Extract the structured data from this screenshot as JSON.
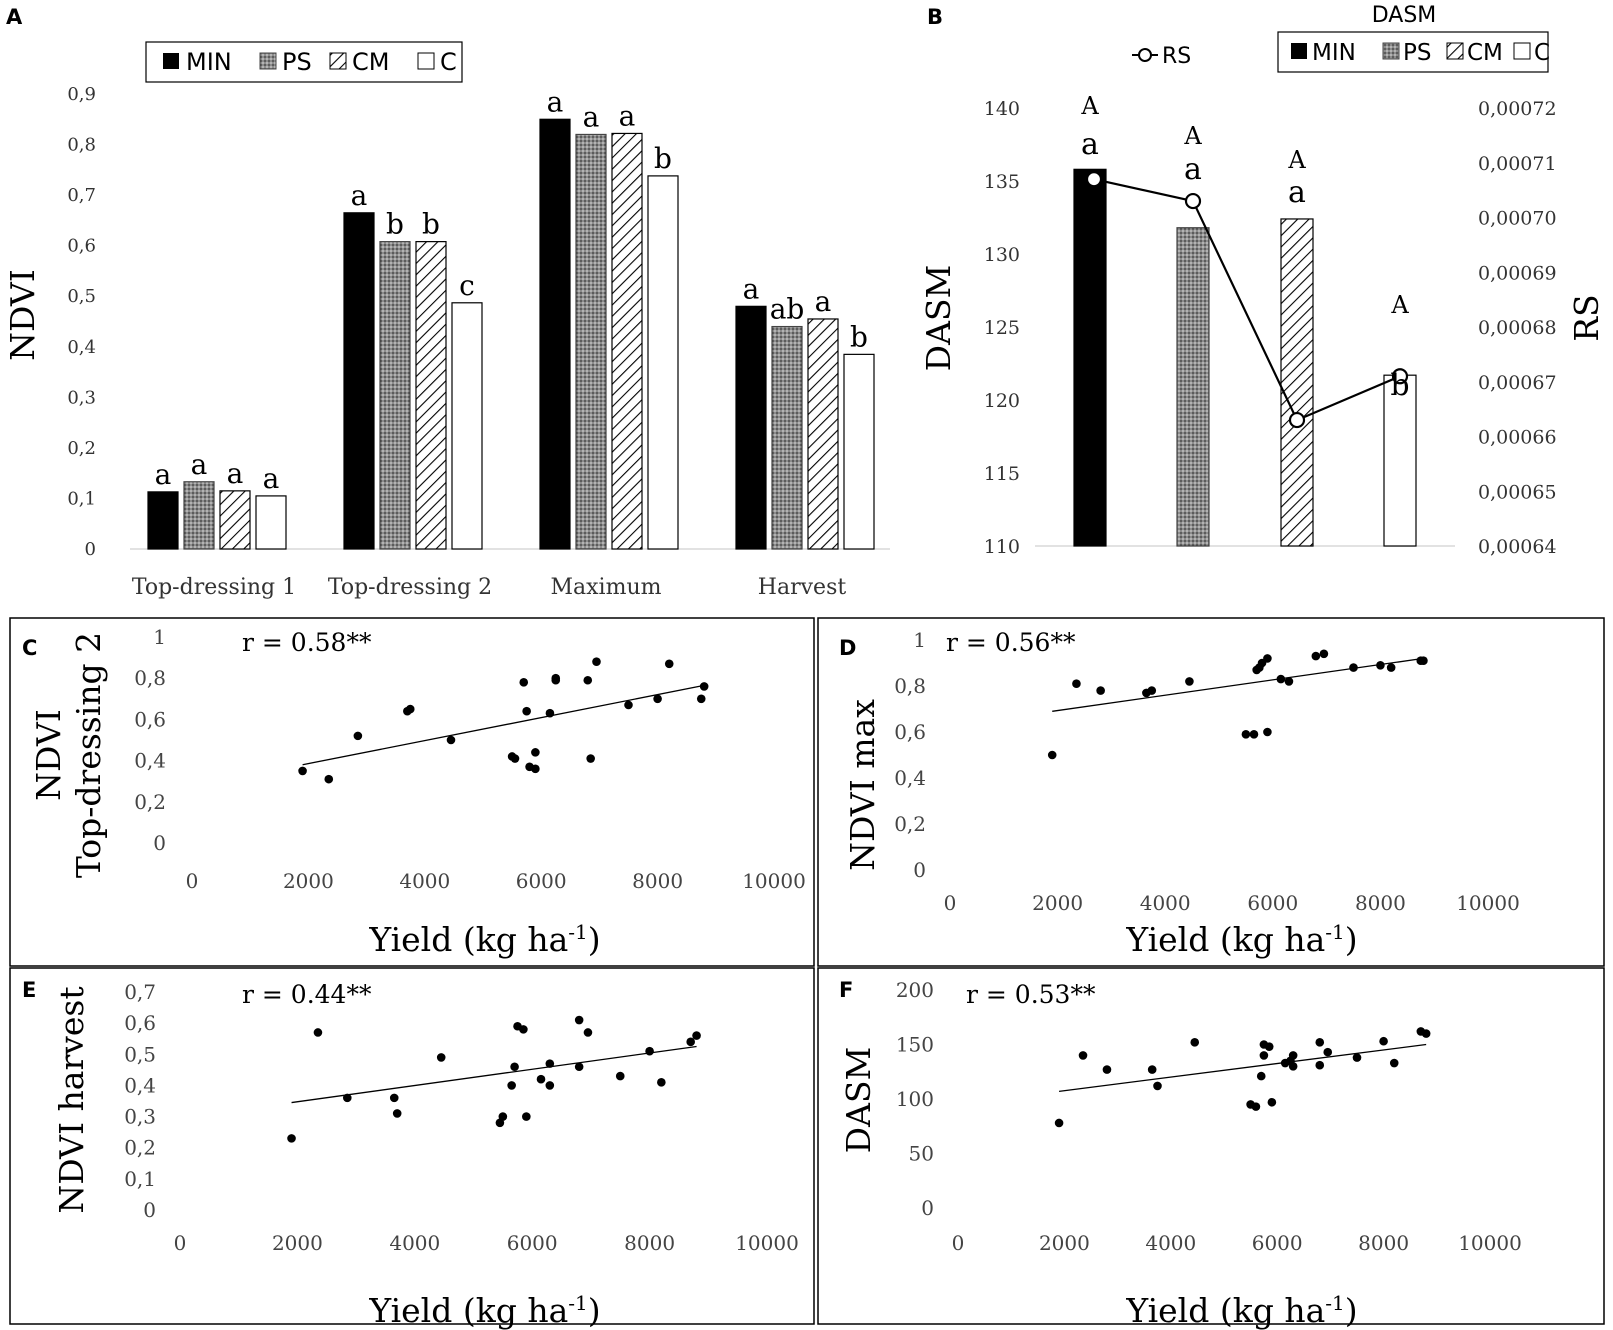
{
  "panel_letters": {
    "A": "A",
    "B": "B",
    "C": "C",
    "D": "D",
    "E": "E",
    "F": "F"
  },
  "colors": {
    "MIN": "#000000",
    "PS": "#7a7a7a",
    "CM": "#ffffff",
    "C": "#ffffff",
    "axis": "#d9d9d9",
    "line": "#000000"
  },
  "chart_data": [
    {
      "panel": "A",
      "type": "bar",
      "ylabel": "NDVI",
      "xlabel": "",
      "ylim": [
        0,
        0.9
      ],
      "yticks": [
        "0",
        "0,1",
        "0,2",
        "0,3",
        "0,4",
        "0,5",
        "0,6",
        "0,7",
        "0,8",
        "0,9"
      ],
      "legend": [
        "MIN",
        "PS",
        "CM",
        "C"
      ],
      "categories": [
        "Top-dressing 1",
        "Top-dressing 2",
        "Maximum",
        "Harvest"
      ],
      "series": [
        {
          "name": "MIN",
          "values": [
            0.113,
            0.665,
            0.85,
            0.48
          ],
          "letters": [
            "a",
            "a",
            "a",
            "a"
          ]
        },
        {
          "name": "PS",
          "values": [
            0.133,
            0.608,
            0.82,
            0.44
          ],
          "letters": [
            "a",
            "b",
            "a",
            "ab"
          ]
        },
        {
          "name": "CM",
          "values": [
            0.115,
            0.608,
            0.822,
            0.455
          ],
          "letters": [
            "a",
            "b",
            "a",
            "a"
          ]
        },
        {
          "name": "C",
          "values": [
            0.105,
            0.487,
            0.738,
            0.385
          ],
          "letters": [
            "a",
            "c",
            "b",
            "b"
          ]
        }
      ]
    },
    {
      "panel": "B",
      "type": "bar",
      "ylabel": "DASM",
      "y2label": "RS",
      "legend_title": "DASM",
      "legend": [
        "MIN",
        "PS",
        "CM",
        "C"
      ],
      "line_legend": "RS",
      "ylim": [
        110,
        140
      ],
      "yticks": [
        "110",
        "115",
        "120",
        "125",
        "130",
        "135",
        "140"
      ],
      "y2lim": [
        0.00064,
        0.00072
      ],
      "y2ticks": [
        "0,00064",
        "0,00065",
        "0,00066",
        "0,00067",
        "0,00068",
        "0,00069",
        "0,00070",
        "0,00071",
        "0,00072"
      ],
      "categories": [
        "MIN",
        "PS",
        "CM",
        "C"
      ],
      "values": [
        135.8,
        131.8,
        132.4,
        121.7
      ],
      "letters": [
        "a",
        "a",
        "a",
        "b"
      ],
      "rs_values": [
        0.000707,
        0.000703,
        0.000663,
        0.000671
      ],
      "rs_letters": [
        "A",
        "A",
        "A",
        "A"
      ]
    },
    {
      "panel": "C",
      "type": "scatter",
      "annotation": "r = 0.58**",
      "ylabel": [
        "NDVI",
        "Top-dressing 2"
      ],
      "xlabel": "Yield (kg ha",
      "xlabel_sup": "-1",
      "xlabel_end": ")",
      "xlim": [
        0,
        10000
      ],
      "ylim": [
        0,
        1
      ],
      "xticks": [
        "0",
        "2000",
        "4000",
        "6000",
        "8000",
        "10000"
      ],
      "yticks": [
        "0",
        "0,2",
        "0,4",
        "0,6",
        "0,8",
        "1"
      ],
      "trend": [
        [
          1900,
          0.38
        ],
        [
          8800,
          0.765
        ]
      ],
      "points": [
        [
          1900,
          0.35
        ],
        [
          2350,
          0.31
        ],
        [
          2850,
          0.52
        ],
        [
          3700,
          0.64
        ],
        [
          3750,
          0.65
        ],
        [
          4450,
          0.5
        ],
        [
          5500,
          0.42
        ],
        [
          5550,
          0.41
        ],
        [
          5700,
          0.78
        ],
        [
          5750,
          0.64
        ],
        [
          5800,
          0.37
        ],
        [
          5900,
          0.36
        ],
        [
          5900,
          0.44
        ],
        [
          6150,
          0.63
        ],
        [
          6250,
          0.79
        ],
        [
          6250,
          0.8
        ],
        [
          6800,
          0.79
        ],
        [
          6850,
          0.41
        ],
        [
          6950,
          0.88
        ],
        [
          7500,
          0.67
        ],
        [
          8000,
          0.7
        ],
        [
          8200,
          0.87
        ],
        [
          8750,
          0.7
        ],
        [
          8800,
          0.76
        ]
      ]
    },
    {
      "panel": "D",
      "type": "scatter",
      "annotation": "r = 0.56**",
      "ylabel": [
        "NDVI max"
      ],
      "xlabel": "Yield (kg ha",
      "xlabel_sup": "-1",
      "xlabel_end": ")",
      "xlim": [
        0,
        10000
      ],
      "ylim": [
        0,
        1
      ],
      "xticks": [
        "0",
        "2000",
        "4000",
        "6000",
        "8000",
        "10000"
      ],
      "yticks": [
        "0",
        "0,2",
        "0,4",
        "0,6",
        "0,8",
        "1"
      ],
      "trend": [
        [
          1900,
          0.69
        ],
        [
          8800,
          0.92
        ]
      ],
      "points": [
        [
          1900,
          0.5
        ],
        [
          2350,
          0.81
        ],
        [
          2800,
          0.78
        ],
        [
          3650,
          0.77
        ],
        [
          3750,
          0.78
        ],
        [
          4450,
          0.82
        ],
        [
          5500,
          0.59
        ],
        [
          5650,
          0.59
        ],
        [
          5700,
          0.87
        ],
        [
          5750,
          0.88
        ],
        [
          5800,
          0.9
        ],
        [
          5900,
          0.92
        ],
        [
          5900,
          0.6
        ],
        [
          6150,
          0.83
        ],
        [
          6300,
          0.82
        ],
        [
          6800,
          0.93
        ],
        [
          6950,
          0.94
        ],
        [
          7500,
          0.88
        ],
        [
          8000,
          0.89
        ],
        [
          8200,
          0.88
        ],
        [
          8750,
          0.91
        ],
        [
          8800,
          0.91
        ]
      ]
    },
    {
      "panel": "E",
      "type": "scatter",
      "annotation": "r = 0.44**",
      "ylabel": [
        "NDVI harvest"
      ],
      "xlabel": "Yield (kg ha",
      "xlabel_sup": "-1",
      "xlabel_end": ")",
      "xlim": [
        0,
        10000
      ],
      "ylim": [
        0,
        0.7
      ],
      "xticks": [
        "0",
        "2000",
        "4000",
        "6000",
        "8000",
        "10000"
      ],
      "yticks": [
        "0",
        "0,1",
        "0,2",
        "0,3",
        "0,4",
        "0,5",
        "0,6",
        "0,7"
      ],
      "trend": [
        [
          1900,
          0.345
        ],
        [
          8800,
          0.525
        ]
      ],
      "points": [
        [
          1900,
          0.23
        ],
        [
          2350,
          0.57
        ],
        [
          2850,
          0.36
        ],
        [
          3650,
          0.36
        ],
        [
          3700,
          0.31
        ],
        [
          4450,
          0.49
        ],
        [
          5450,
          0.28
        ],
        [
          5500,
          0.3
        ],
        [
          5650,
          0.4
        ],
        [
          5700,
          0.46
        ],
        [
          5750,
          0.59
        ],
        [
          5850,
          0.58
        ],
        [
          5900,
          0.3
        ],
        [
          6150,
          0.42
        ],
        [
          6300,
          0.47
        ],
        [
          6300,
          0.4
        ],
        [
          6800,
          0.61
        ],
        [
          6800,
          0.46
        ],
        [
          6950,
          0.57
        ],
        [
          7500,
          0.43
        ],
        [
          8000,
          0.51
        ],
        [
          8200,
          0.41
        ],
        [
          8700,
          0.54
        ],
        [
          8800,
          0.56
        ]
      ]
    },
    {
      "panel": "F",
      "type": "scatter",
      "annotation": "r = 0.53**",
      "ylabel": [
        "DASM"
      ],
      "xlabel": "Yield (kg ha",
      "xlabel_sup": "-1",
      "xlabel_end": ")",
      "xlim": [
        0,
        10000
      ],
      "ylim": [
        0,
        200
      ],
      "xticks": [
        "0",
        "2000",
        "4000",
        "6000",
        "8000",
        "10000"
      ],
      "yticks": [
        "0",
        "50",
        "100",
        "150",
        "200"
      ],
      "trend": [
        [
          1900,
          107
        ],
        [
          8800,
          150
        ]
      ],
      "points": [
        [
          1900,
          78
        ],
        [
          2350,
          140
        ],
        [
          2800,
          127
        ],
        [
          3650,
          127
        ],
        [
          3750,
          112
        ],
        [
          4450,
          152
        ],
        [
          5500,
          95
        ],
        [
          5600,
          93
        ],
        [
          5700,
          121
        ],
        [
          5750,
          140
        ],
        [
          5750,
          150
        ],
        [
          5850,
          148
        ],
        [
          5900,
          97
        ],
        [
          6150,
          133
        ],
        [
          6250,
          135
        ],
        [
          6300,
          130
        ],
        [
          6300,
          140
        ],
        [
          6800,
          131
        ],
        [
          6800,
          152
        ],
        [
          6950,
          143
        ],
        [
          7500,
          138
        ],
        [
          8000,
          153
        ],
        [
          8200,
          133
        ],
        [
          8700,
          162
        ],
        [
          8800,
          160
        ]
      ]
    }
  ]
}
